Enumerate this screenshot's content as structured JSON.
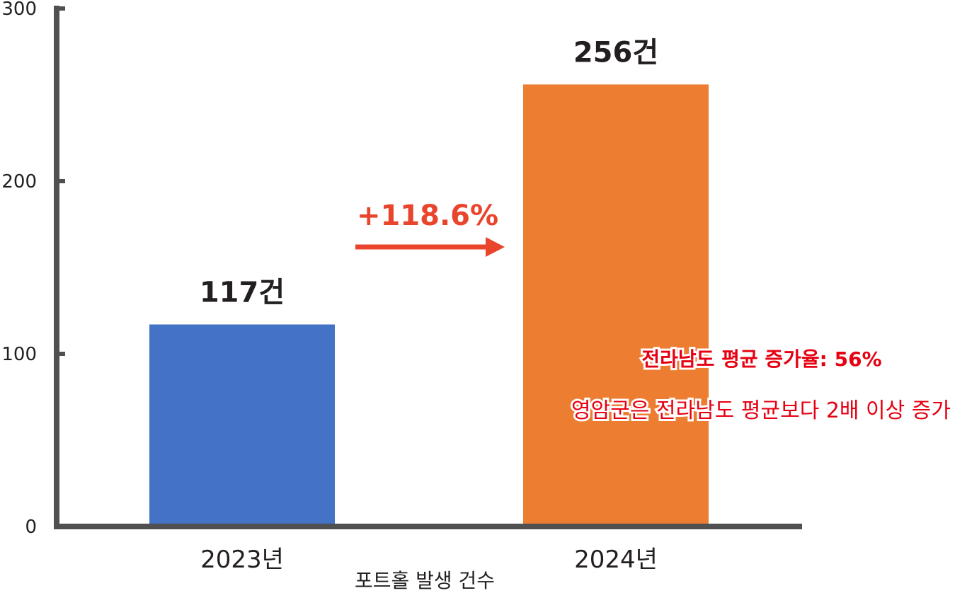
{
  "chart_data": {
    "type": "bar",
    "categories": [
      "2023년",
      "2024년"
    ],
    "values": [
      117,
      256
    ],
    "value_labels": [
      "117건",
      "256건"
    ],
    "xlabel": "포트홀 발생 건수",
    "ylim": [
      0,
      300
    ],
    "yticks": [
      0,
      100,
      200,
      300
    ],
    "grid": false,
    "colors": [
      "#4472c4",
      "#ed7d31"
    ],
    "annotations": {
      "growth": "+118.6%",
      "growth_color": "#e8452c",
      "note_bold": "전라남도 평균 증가율: 56%",
      "note": "영암군은 전라남도 평균보다 2배 이상 증가",
      "note_color": "#e60012"
    }
  }
}
